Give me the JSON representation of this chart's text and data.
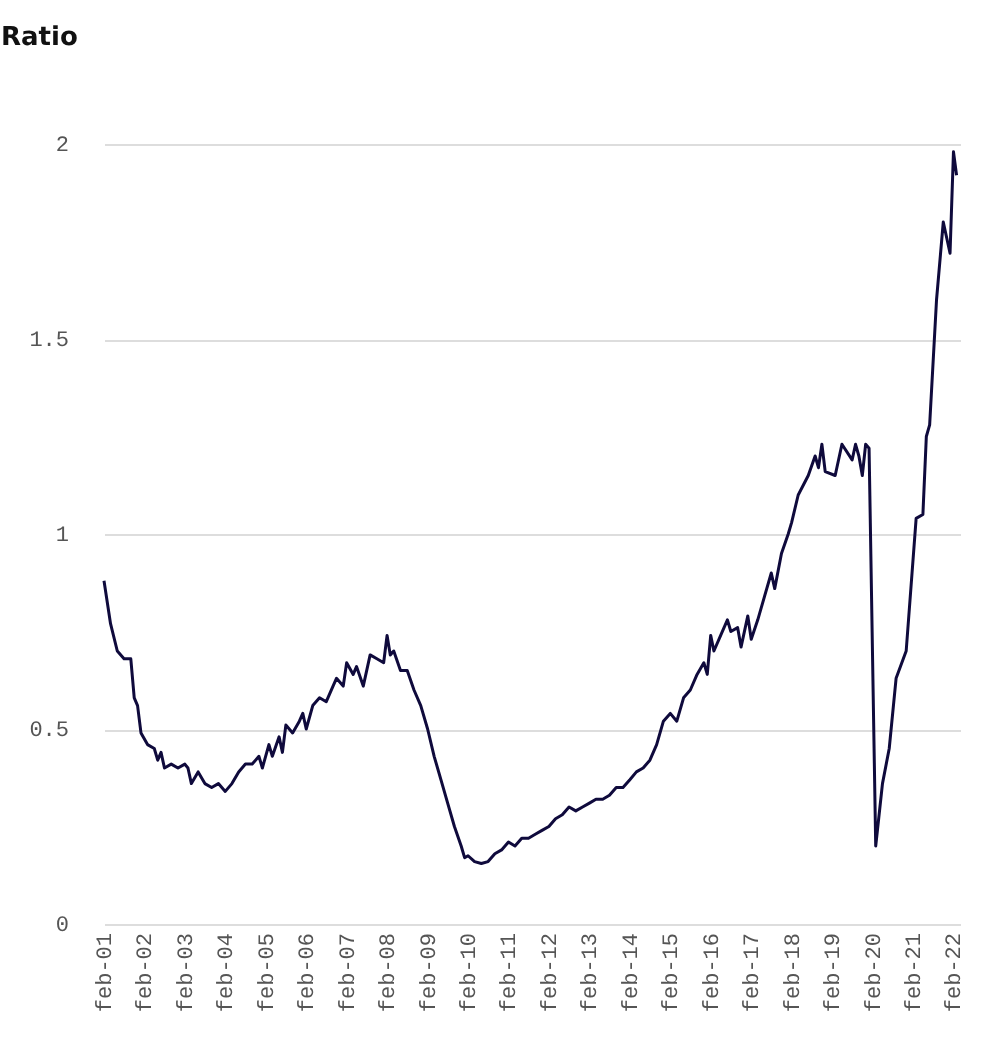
{
  "chart_data": {
    "type": "line",
    "ylabel": "Ratio",
    "x": [
      "2001-02",
      "2001-04",
      "2001-06",
      "2001-08",
      "2001-10",
      "2001-11",
      "2001-12",
      "2002-01",
      "2002-03",
      "2002-05",
      "2002-06",
      "2002-07",
      "2002-08",
      "2002-10",
      "2002-12",
      "2003-02",
      "2003-03",
      "2003-04",
      "2003-06",
      "2003-08",
      "2003-10",
      "2003-12",
      "2004-02",
      "2004-04",
      "2004-06",
      "2004-08",
      "2004-10",
      "2004-12",
      "2005-01",
      "2005-03",
      "2005-04",
      "2005-06",
      "2005-07",
      "2005-08",
      "2005-10",
      "2005-12",
      "2006-01",
      "2006-02",
      "2006-04",
      "2006-06",
      "2006-08",
      "2006-10",
      "2006-11",
      "2007-01",
      "2007-02",
      "2007-04",
      "2007-05",
      "2007-07",
      "2007-09",
      "2007-11",
      "2008-01",
      "2008-02",
      "2008-03",
      "2008-04",
      "2008-06",
      "2008-08",
      "2008-10",
      "2008-12",
      "2009-02",
      "2009-04",
      "2009-06",
      "2009-08",
      "2009-10",
      "2009-12",
      "2010-01",
      "2010-02",
      "2010-04",
      "2010-06",
      "2010-08",
      "2010-10",
      "2010-12",
      "2011-02",
      "2011-04",
      "2011-06",
      "2011-08",
      "2011-10",
      "2011-12",
      "2012-02",
      "2012-04",
      "2012-06",
      "2012-08",
      "2012-10",
      "2012-12",
      "2013-02",
      "2013-04",
      "2013-06",
      "2013-08",
      "2013-10",
      "2013-12",
      "2014-02",
      "2014-04",
      "2014-06",
      "2014-08",
      "2014-10",
      "2014-12",
      "2015-02",
      "2015-04",
      "2015-06",
      "2015-08",
      "2015-10",
      "2015-12",
      "2016-01",
      "2016-02",
      "2016-03",
      "2016-05",
      "2016-07",
      "2016-08",
      "2016-10",
      "2016-11",
      "2017-01",
      "2017-02",
      "2017-04",
      "2017-06",
      "2017-08",
      "2017-09",
      "2017-11",
      "2018-01",
      "2018-02",
      "2018-04",
      "2018-07",
      "2018-09",
      "2018-10",
      "2018-11",
      "2018-12",
      "2019-03",
      "2019-05",
      "2019-08",
      "2019-09",
      "2019-10",
      "2019-11",
      "2019-12",
      "2020-01",
      "2020-03",
      "2020-05",
      "2020-07",
      "2020-09",
      "2020-12",
      "2021-03",
      "2021-05",
      "2021-06",
      "2021-07",
      "2021-09",
      "2021-11",
      "2022-01",
      "2022-02",
      "2022-03"
    ],
    "series": [
      {
        "color": "#0f0a3c",
        "values": [
          0.88,
          0.77,
          0.7,
          0.68,
          0.68,
          0.58,
          0.56,
          0.49,
          0.46,
          0.45,
          0.42,
          0.44,
          0.4,
          0.41,
          0.4,
          0.41,
          0.4,
          0.36,
          0.39,
          0.36,
          0.35,
          0.36,
          0.34,
          0.36,
          0.39,
          0.41,
          0.41,
          0.43,
          0.4,
          0.46,
          0.43,
          0.48,
          0.44,
          0.51,
          0.49,
          0.52,
          0.54,
          0.5,
          0.56,
          0.58,
          0.57,
          0.61,
          0.63,
          0.61,
          0.67,
          0.64,
          0.66,
          0.61,
          0.69,
          0.68,
          0.67,
          0.74,
          0.69,
          0.7,
          0.65,
          0.65,
          0.6,
          0.56,
          0.5,
          0.43,
          0.37,
          0.31,
          0.25,
          0.2,
          0.17,
          0.175,
          0.16,
          0.155,
          0.16,
          0.18,
          0.19,
          0.21,
          0.2,
          0.22,
          0.22,
          0.23,
          0.24,
          0.25,
          0.27,
          0.28,
          0.3,
          0.29,
          0.3,
          0.31,
          0.32,
          0.32,
          0.33,
          0.35,
          0.35,
          0.37,
          0.39,
          0.4,
          0.42,
          0.46,
          0.52,
          0.54,
          0.52,
          0.58,
          0.6,
          0.64,
          0.67,
          0.64,
          0.74,
          0.7,
          0.74,
          0.78,
          0.75,
          0.76,
          0.71,
          0.79,
          0.73,
          0.78,
          0.84,
          0.9,
          0.86,
          0.95,
          1.0,
          1.03,
          1.1,
          1.15,
          1.2,
          1.17,
          1.23,
          1.16,
          1.15,
          1.23,
          1.19,
          1.23,
          1.2,
          1.15,
          1.23,
          1.22,
          0.2,
          0.36,
          0.45,
          0.63,
          0.7,
          1.04,
          1.05,
          1.25,
          1.28,
          1.6,
          1.8,
          1.72,
          1.98,
          1.92
        ]
      }
    ],
    "xlim": [
      "2001-02",
      "2022-04"
    ],
    "xticks": [
      {
        "value": "2001-02",
        "label": "feb-01"
      },
      {
        "value": "2002-02",
        "label": "feb-02"
      },
      {
        "value": "2003-02",
        "label": "feb-03"
      },
      {
        "value": "2004-02",
        "label": "feb-04"
      },
      {
        "value": "2005-02",
        "label": "feb-05"
      },
      {
        "value": "2006-02",
        "label": "feb-06"
      },
      {
        "value": "2007-02",
        "label": "feb-07"
      },
      {
        "value": "2008-02",
        "label": "feb-08"
      },
      {
        "value": "2009-02",
        "label": "feb-09"
      },
      {
        "value": "2010-02",
        "label": "feb-10"
      },
      {
        "value": "2011-02",
        "label": "feb-11"
      },
      {
        "value": "2012-02",
        "label": "feb-12"
      },
      {
        "value": "2013-02",
        "label": "feb-13"
      },
      {
        "value": "2014-02",
        "label": "feb-14"
      },
      {
        "value": "2015-02",
        "label": "feb-15"
      },
      {
        "value": "2016-02",
        "label": "feb-16"
      },
      {
        "value": "2017-02",
        "label": "feb-17"
      },
      {
        "value": "2018-02",
        "label": "feb-18"
      },
      {
        "value": "2019-02",
        "label": "feb-19"
      },
      {
        "value": "2020-02",
        "label": "feb-20"
      },
      {
        "value": "2021-02",
        "label": "feb-21"
      },
      {
        "value": "2022-02",
        "label": "feb-22"
      }
    ],
    "ylim": [
      0,
      2
    ],
    "yticks": [
      0,
      0.5,
      1,
      1.5,
      2
    ],
    "grid": "y",
    "line_style": "solid",
    "marker": "none"
  }
}
